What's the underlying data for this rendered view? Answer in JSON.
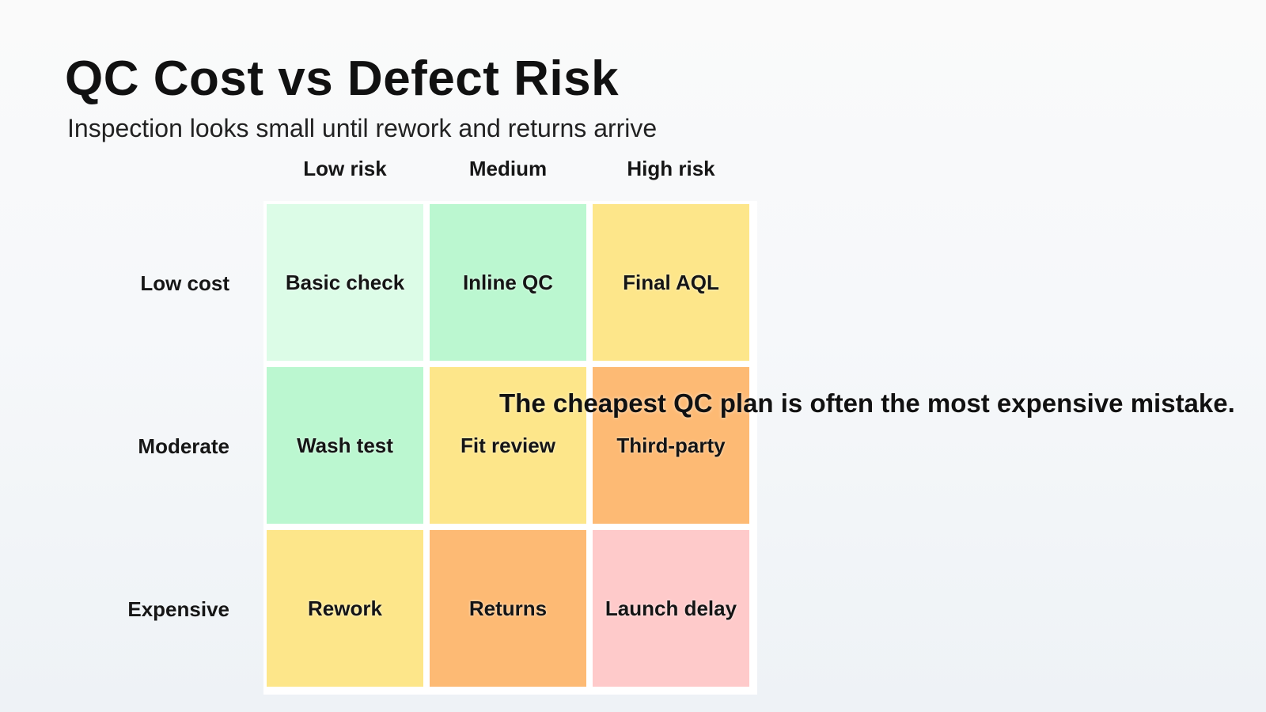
{
  "title": "QC Cost vs Defect Risk",
  "subtitle": "Inspection looks small until rework and returns arrive",
  "columns": [
    "Low risk",
    "Medium",
    "High risk"
  ],
  "rows": [
    "Low cost",
    "Moderate",
    "Expensive"
  ],
  "cells": [
    [
      {
        "label": "Basic check",
        "color": "#dcfce7"
      },
      {
        "label": "Inline QC",
        "color": "#bbf7d0"
      },
      {
        "label": "Final AQL",
        "color": "#fde68a"
      }
    ],
    [
      {
        "label": "Wash test",
        "color": "#bbf7d0"
      },
      {
        "label": "Fit review",
        "color": "#fde68a"
      },
      {
        "label": "Third-party",
        "color": "#fdba74"
      }
    ],
    [
      {
        "label": "Rework",
        "color": "#fde68a"
      },
      {
        "label": "Returns",
        "color": "#fdba74"
      },
      {
        "label": "Launch delay",
        "color": "#fecaca"
      }
    ]
  ],
  "callout": "The cheapest QC plan is often the most expensive mistake."
}
